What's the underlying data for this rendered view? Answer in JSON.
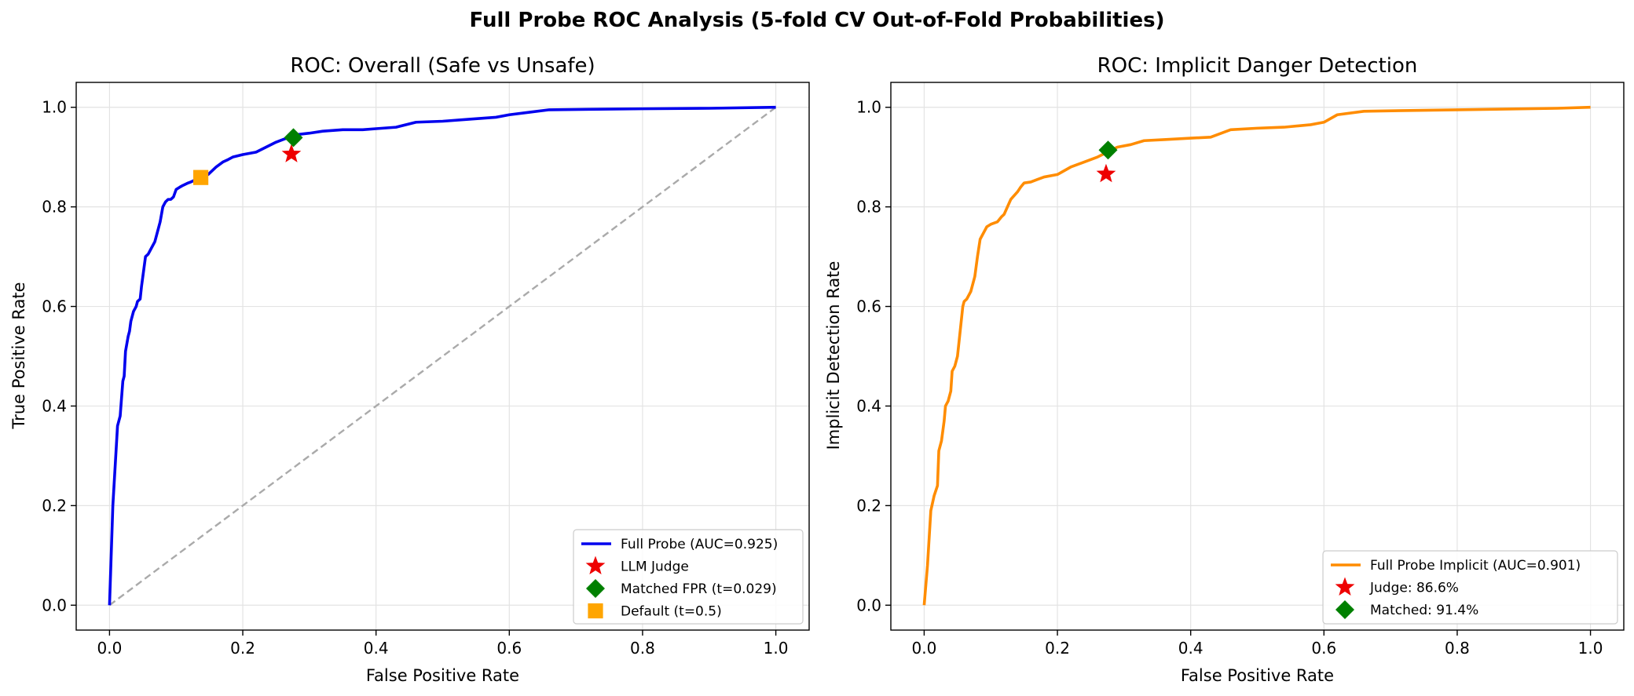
{
  "figure": {
    "suptitle": "Full Probe ROC Analysis (5-fold CV Out-of-Fold Probabilities)"
  },
  "chart_data": [
    {
      "type": "line",
      "title": "ROC: Overall (Safe vs Unsafe)",
      "xlabel": "False Positive Rate",
      "ylabel": "True Positive Rate",
      "xlim": [
        -0.05,
        1.05
      ],
      "ylim": [
        -0.05,
        1.05
      ],
      "xticks": [
        0.0,
        0.2,
        0.4,
        0.6,
        0.8,
        1.0
      ],
      "yticks": [
        0.0,
        0.2,
        0.4,
        0.6,
        0.8,
        1.0
      ],
      "tick_labels": [
        "0.0",
        "0.2",
        "0.4",
        "0.6",
        "0.8",
        "1.0"
      ],
      "grid": true,
      "legend_position": "lower-right",
      "diagonal": {
        "x": [
          0,
          1
        ],
        "y": [
          0,
          1
        ],
        "color": "#aaaaaa",
        "style": "dashed"
      },
      "series": [
        {
          "name": "Full Probe (AUC=0.925)",
          "color": "#0000ee",
          "x": [
            0,
            0.005,
            0.012,
            0.016,
            0.02,
            0.022,
            0.024,
            0.028,
            0.03,
            0.032,
            0.036,
            0.04,
            0.042,
            0.046,
            0.048,
            0.05,
            0.054,
            0.058,
            0.06,
            0.064,
            0.068,
            0.072,
            0.076,
            0.08,
            0.084,
            0.088,
            0.092,
            0.096,
            0.1,
            0.106,
            0.11,
            0.118,
            0.122,
            0.13,
            0.136,
            0.14,
            0.148,
            0.152,
            0.16,
            0.17,
            0.178,
            0.185,
            0.2,
            0.22,
            0.235,
            0.25,
            0.26,
            0.27,
            0.28,
            0.3,
            0.32,
            0.35,
            0.38,
            0.4,
            0.43,
            0.46,
            0.5,
            0.54,
            0.58,
            0.6,
            0.63,
            0.66,
            0.72,
            0.8,
            0.9,
            1.0
          ],
          "y": [
            0,
            0.2,
            0.36,
            0.38,
            0.45,
            0.46,
            0.51,
            0.54,
            0.55,
            0.57,
            0.59,
            0.6,
            0.61,
            0.615,
            0.64,
            0.66,
            0.7,
            0.705,
            0.71,
            0.72,
            0.73,
            0.75,
            0.77,
            0.8,
            0.81,
            0.815,
            0.815,
            0.82,
            0.835,
            0.84,
            0.843,
            0.848,
            0.85,
            0.855,
            0.86,
            0.862,
            0.865,
            0.87,
            0.88,
            0.89,
            0.895,
            0.9,
            0.905,
            0.91,
            0.92,
            0.93,
            0.935,
            0.94,
            0.945,
            0.948,
            0.952,
            0.955,
            0.955,
            0.957,
            0.96,
            0.97,
            0.972,
            0.976,
            0.98,
            0.985,
            0.99,
            0.995,
            0.996,
            0.997,
            0.998,
            1.0
          ]
        },
        {
          "name": "LLM Judge",
          "type": "scatter",
          "marker": "star",
          "color": "#ee0000",
          "x": [
            0.273
          ],
          "y": [
            0.906
          ]
        },
        {
          "name": "Matched FPR (t=0.029)",
          "type": "scatter",
          "marker": "diamond",
          "color": "#008000",
          "x": [
            0.276
          ],
          "y": [
            0.939
          ]
        },
        {
          "name": "Default (t=0.5)",
          "type": "scatter",
          "marker": "square",
          "color": "#ffa500",
          "x": [
            0.137
          ],
          "y": [
            0.859
          ]
        }
      ]
    },
    {
      "type": "line",
      "title": "ROC: Implicit Danger Detection",
      "xlabel": "False Positive Rate",
      "ylabel": "Implicit Detection Rate",
      "xlim": [
        -0.05,
        1.05
      ],
      "ylim": [
        -0.05,
        1.05
      ],
      "xticks": [
        0.0,
        0.2,
        0.4,
        0.6,
        0.8,
        1.0
      ],
      "yticks": [
        0.0,
        0.2,
        0.4,
        0.6,
        0.8,
        1.0
      ],
      "tick_labels": [
        "0.0",
        "0.2",
        "0.4",
        "0.6",
        "0.8",
        "1.0"
      ],
      "grid": true,
      "legend_position": "lower-right",
      "series": [
        {
          "name": "Full Probe Implicit (AUC=0.901)",
          "color": "#ff8c00",
          "x": [
            0,
            0.005,
            0.01,
            0.015,
            0.02,
            0.022,
            0.026,
            0.03,
            0.032,
            0.036,
            0.04,
            0.042,
            0.046,
            0.05,
            0.054,
            0.058,
            0.06,
            0.064,
            0.07,
            0.076,
            0.08,
            0.084,
            0.09,
            0.094,
            0.1,
            0.11,
            0.116,
            0.12,
            0.125,
            0.13,
            0.14,
            0.145,
            0.15,
            0.16,
            0.17,
            0.18,
            0.2,
            0.22,
            0.24,
            0.26,
            0.275,
            0.29,
            0.31,
            0.33,
            0.36,
            0.4,
            0.43,
            0.46,
            0.5,
            0.54,
            0.58,
            0.6,
            0.62,
            0.66,
            0.75,
            0.85,
            0.95,
            1.0
          ],
          "y": [
            0,
            0.08,
            0.19,
            0.22,
            0.24,
            0.31,
            0.33,
            0.37,
            0.4,
            0.41,
            0.43,
            0.47,
            0.48,
            0.5,
            0.55,
            0.6,
            0.61,
            0.615,
            0.63,
            0.66,
            0.7,
            0.735,
            0.75,
            0.76,
            0.765,
            0.77,
            0.78,
            0.785,
            0.8,
            0.815,
            0.83,
            0.84,
            0.848,
            0.85,
            0.855,
            0.86,
            0.865,
            0.88,
            0.89,
            0.9,
            0.91,
            0.92,
            0.925,
            0.933,
            0.935,
            0.938,
            0.94,
            0.955,
            0.958,
            0.96,
            0.965,
            0.97,
            0.985,
            0.992,
            0.994,
            0.996,
            0.998,
            1.0
          ]
        },
        {
          "name": "Judge: 86.6%",
          "type": "scatter",
          "marker": "star",
          "color": "#ee0000",
          "x": [
            0.273
          ],
          "y": [
            0.866
          ]
        },
        {
          "name": "Matched: 91.4%",
          "type": "scatter",
          "marker": "diamond",
          "color": "#008000",
          "x": [
            0.276
          ],
          "y": [
            0.914
          ]
        }
      ]
    }
  ]
}
